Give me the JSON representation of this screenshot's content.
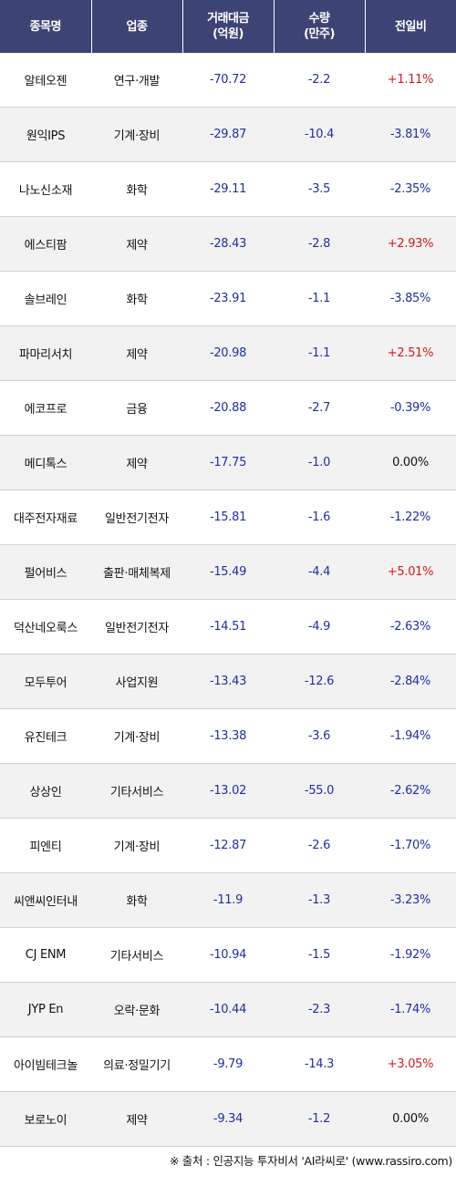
{
  "header": {
    "col1": "종목명",
    "col2": "업종",
    "col3_line1": "거래대금",
    "col3_line2": "(억원)",
    "col4_line1": "수량",
    "col4_line2": "(만주)",
    "col5": "전일비"
  },
  "rows": [
    {
      "name": "알테오젠",
      "sector": "연구·개발",
      "amount": "-70.72",
      "qty": "-2.2",
      "rate": "+1.11%"
    },
    {
      "name": "원익IPS",
      "sector": "기계·장비",
      "amount": "-29.87",
      "qty": "-10.4",
      "rate": "-3.81%"
    },
    {
      "name": "나노신소재",
      "sector": "화학",
      "amount": "-29.11",
      "qty": "-3.5",
      "rate": "-2.35%"
    },
    {
      "name": "에스티팜",
      "sector": "제약",
      "amount": "-28.43",
      "qty": "-2.8",
      "rate": "+2.93%"
    },
    {
      "name": "솔브레인",
      "sector": "화학",
      "amount": "-23.91",
      "qty": "-1.1",
      "rate": "-3.85%"
    },
    {
      "name": "파마리서치",
      "sector": "제약",
      "amount": "-20.98",
      "qty": "-1.1",
      "rate": "+2.51%"
    },
    {
      "name": "에코프로",
      "sector": "금융",
      "amount": "-20.88",
      "qty": "-2.7",
      "rate": "-0.39%"
    },
    {
      "name": "메디톡스",
      "sector": "제약",
      "amount": "-17.75",
      "qty": "-1.0",
      "rate": "0.00%"
    },
    {
      "name": "대주전자재료",
      "sector": "일반전기전자",
      "amount": "-15.81",
      "qty": "-1.6",
      "rate": "-1.22%"
    },
    {
      "name": "펄어비스",
      "sector": "출판·매체복제",
      "amount": "-15.49",
      "qty": "-4.4",
      "rate": "+5.01%"
    },
    {
      "name": "덕산네오룩스",
      "sector": "일반전기전자",
      "amount": "-14.51",
      "qty": "-4.9",
      "rate": "-2.63%"
    },
    {
      "name": "모두투어",
      "sector": "사업지원",
      "amount": "-13.43",
      "qty": "-12.6",
      "rate": "-2.84%"
    },
    {
      "name": "유진테크",
      "sector": "기계·장비",
      "amount": "-13.38",
      "qty": "-3.6",
      "rate": "-1.94%"
    },
    {
      "name": "상상인",
      "sector": "기타서비스",
      "amount": "-13.02",
      "qty": "-55.0",
      "rate": "-2.62%"
    },
    {
      "name": "피엔티",
      "sector": "기계·장비",
      "amount": "-12.87",
      "qty": "-2.6",
      "rate": "-1.70%"
    },
    {
      "name": "씨앤씨인터내",
      "sector": "화학",
      "amount": "-11.9",
      "qty": "-1.3",
      "rate": "-3.23%"
    },
    {
      "name": "CJ ENM",
      "sector": "기타서비스",
      "amount": "-10.94",
      "qty": "-1.5",
      "rate": "-1.92%"
    },
    {
      "name": "JYP En",
      "sector": "오락·문화",
      "amount": "-10.44",
      "qty": "-2.3",
      "rate": "-1.74%"
    },
    {
      "name": "아이빔테크놀",
      "sector": "의료·정밀기기",
      "amount": "-9.79",
      "qty": "-14.3",
      "rate": "+3.05%"
    },
    {
      "name": "보로노이",
      "sector": "제약",
      "amount": "-9.34",
      "qty": "-1.2",
      "rate": "0.00%"
    }
  ],
  "footer": {
    "source": "※ 출처 : 인공지능 투자비서 'AI라씨로' (www.rassiro.com)"
  },
  "colors": {
    "header_bg": "#3d4373",
    "up": "#d11a1a",
    "down": "#1f2fa0",
    "row_alt": "#f2f2f2"
  }
}
